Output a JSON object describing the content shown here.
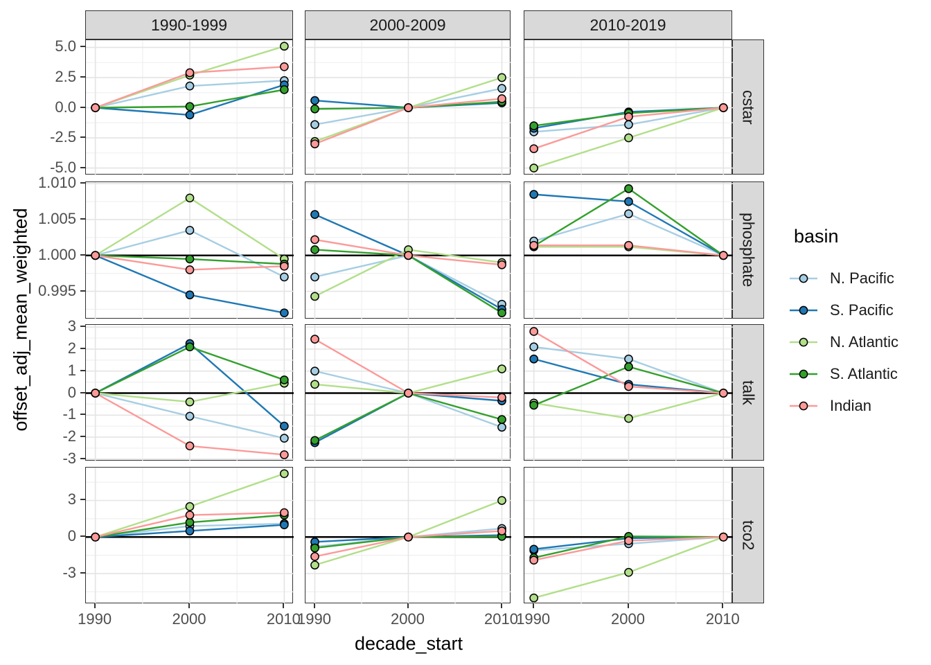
{
  "chart_data": {
    "type": "line",
    "title": "",
    "x_label": "decade_start",
    "y_label": "offset_adj_mean_weighted",
    "facet_columns": [
      "1990-1999",
      "2000-2009",
      "2010-2019"
    ],
    "facet_rows": [
      "cstar",
      "phosphate",
      "talk",
      "tco2"
    ],
    "x": [
      1990,
      2000,
      2010
    ],
    "x_domain": [
      1989,
      2011
    ],
    "x_tick_labels": [
      "1990",
      "2000",
      "2010"
    ],
    "x_minor": [
      1995,
      2005
    ],
    "grid": "on",
    "legend": {
      "title": "basin",
      "position": "right",
      "entries": [
        {
          "label": "N. Pacific",
          "color": "#a6cee3"
        },
        {
          "label": "S. Pacific",
          "color": "#1f78b4"
        },
        {
          "label": "N. Atlantic",
          "color": "#b2df8a"
        },
        {
          "label": "S. Atlantic",
          "color": "#33a02c"
        },
        {
          "label": "Indian",
          "color": "#fb9a99"
        }
      ]
    },
    "series_order": [
      "N. Pacific",
      "S. Pacific",
      "N. Atlantic",
      "S. Atlantic",
      "Indian"
    ],
    "colors": {
      "N. Pacific": "#a6cee3",
      "S. Pacific": "#1f78b4",
      "N. Atlantic": "#b2df8a",
      "S. Atlantic": "#33a02c",
      "Indian": "#fb9a99"
    },
    "rows": [
      {
        "name": "cstar",
        "domain": [
          -5.6,
          5.6
        ],
        "ticks": [
          {
            "v": 5.0,
            "label": "5.0"
          },
          {
            "v": 2.5,
            "label": "2.5"
          },
          {
            "v": 0.0,
            "label": "0.0"
          },
          {
            "v": -2.5,
            "label": "-2.5"
          },
          {
            "v": -5.0,
            "label": "-5.0"
          }
        ],
        "minor": [
          3.75,
          1.25,
          -1.25,
          -3.75
        ],
        "refline": null,
        "panels": [
          {
            "N. Pacific": [
              0,
              1.8,
              2.25
            ],
            "S. Pacific": [
              0,
              -0.6,
              1.9
            ],
            "N. Atlantic": [
              0,
              2.7,
              5.1
            ],
            "S. Atlantic": [
              0,
              0.1,
              1.5
            ],
            "Indian": [
              0,
              2.9,
              3.4
            ]
          },
          {
            "N. Pacific": [
              -1.4,
              0,
              1.6
            ],
            "S. Pacific": [
              0.6,
              0,
              0.4
            ],
            "N. Atlantic": [
              -2.8,
              0,
              2.5
            ],
            "S. Atlantic": [
              -0.1,
              0,
              0.5
            ],
            "Indian": [
              -3.0,
              0,
              0.75
            ]
          },
          {
            "N. Pacific": [
              -2.0,
              -1.4,
              0
            ],
            "S. Pacific": [
              -1.7,
              -0.35,
              0
            ],
            "N. Atlantic": [
              -5.0,
              -2.5,
              0
            ],
            "S. Atlantic": [
              -1.5,
              -0.45,
              0
            ],
            "Indian": [
              -3.4,
              -0.75,
              0
            ]
          }
        ]
      },
      {
        "name": "phosphate",
        "domain": [
          0.9911,
          1.0102
        ],
        "ticks": [
          {
            "v": 1.01,
            "label": "1.010"
          },
          {
            "v": 1.005,
            "label": "1.005"
          },
          {
            "v": 1.0,
            "label": "1.000"
          },
          {
            "v": 0.995,
            "label": "0.995"
          }
        ],
        "minor": [
          1.0075,
          1.0025,
          0.9975,
          0.9925
        ],
        "refline": 1.0,
        "panels": [
          {
            "N. Pacific": [
              1.0,
              1.0035,
              0.997
            ],
            "S. Pacific": [
              1.0,
              0.9945,
              0.992
            ],
            "N. Atlantic": [
              1.0,
              1.008,
              0.9995
            ],
            "S. Atlantic": [
              1.0,
              0.9995,
              0.9988
            ],
            "Indian": [
              1.0,
              0.998,
              0.9985
            ]
          },
          {
            "N. Pacific": [
              0.997,
              1.0,
              0.9932
            ],
            "S. Pacific": [
              1.0057,
              1.0,
              0.9925
            ],
            "N. Atlantic": [
              0.9943,
              1.0008,
              0.999
            ],
            "S. Atlantic": [
              1.0008,
              1.0,
              0.992
            ],
            "Indian": [
              1.0022,
              1.0,
              0.9987
            ]
          },
          {
            "N. Pacific": [
              1.002,
              1.0058,
              1.0
            ],
            "S. Pacific": [
              1.0085,
              1.0075,
              1.0
            ],
            "N. Atlantic": [
              1.0012,
              1.0012,
              1.0
            ],
            "S. Atlantic": [
              1.0013,
              1.0093,
              1.0
            ],
            "Indian": [
              1.0014,
              1.0014,
              1.0
            ]
          }
        ]
      },
      {
        "name": "talk",
        "domain": [
          -3.1,
          3.1
        ],
        "ticks": [
          {
            "v": 3,
            "label": "3"
          },
          {
            "v": 2,
            "label": "2"
          },
          {
            "v": 1,
            "label": "1"
          },
          {
            "v": 0,
            "label": "0"
          },
          {
            "v": -1,
            "label": "-1"
          },
          {
            "v": -2,
            "label": "-2"
          },
          {
            "v": -3,
            "label": "-3"
          }
        ],
        "minor": [
          2.5,
          1.5,
          0.5,
          -0.5,
          -1.5,
          -2.5
        ],
        "refline": 0,
        "panels": [
          {
            "N. Pacific": [
              0,
              -1.05,
              -2.05
            ],
            "S. Pacific": [
              0,
              2.25,
              -1.5
            ],
            "N. Atlantic": [
              0,
              -0.4,
              0.45
            ],
            "S. Atlantic": [
              0,
              2.1,
              0.6
            ],
            "Indian": [
              0,
              -2.4,
              -2.8
            ]
          },
          {
            "N. Pacific": [
              1.0,
              0,
              -1.55
            ],
            "S. Pacific": [
              -2.25,
              0,
              -0.35
            ],
            "N. Atlantic": [
              0.4,
              0,
              1.1
            ],
            "S. Atlantic": [
              -2.15,
              0,
              -1.2
            ],
            "Indian": [
              2.45,
              0,
              -0.2
            ]
          },
          {
            "N. Pacific": [
              2.1,
              1.55,
              0
            ],
            "S. Pacific": [
              1.55,
              0.4,
              0
            ],
            "N. Atlantic": [
              -0.45,
              -1.15,
              0
            ],
            "S. Atlantic": [
              -0.55,
              1.2,
              0
            ],
            "Indian": [
              2.8,
              0.3,
              0
            ]
          }
        ]
      },
      {
        "name": "tco2",
        "domain": [
          -5.5,
          5.7
        ],
        "ticks": [
          {
            "v": 3,
            "label": "3"
          },
          {
            "v": 0,
            "label": "0"
          },
          {
            "v": -3,
            "label": "-3"
          }
        ],
        "minor": [
          4.5,
          1.5,
          -1.5,
          -4.5
        ],
        "refline": 0,
        "panels": [
          {
            "N. Pacific": [
              0,
              0.9,
              1.1
            ],
            "S. Pacific": [
              0,
              0.5,
              1.0
            ],
            "N. Atlantic": [
              0,
              2.5,
              5.2
            ],
            "S. Atlantic": [
              0,
              1.2,
              1.8
            ],
            "Indian": [
              0,
              1.8,
              2.0
            ]
          },
          {
            "N. Pacific": [
              -0.8,
              0,
              0.7
            ],
            "S. Pacific": [
              -0.4,
              0,
              0.15
            ],
            "N. Atlantic": [
              -2.3,
              0,
              3.0
            ],
            "S. Atlantic": [
              -0.9,
              0,
              0.05
            ],
            "Indian": [
              -1.6,
              0,
              0.5
            ]
          },
          {
            "N. Pacific": [
              -1.1,
              -0.55,
              0
            ],
            "S. Pacific": [
              -1.0,
              -0.1,
              0
            ],
            "N. Atlantic": [
              -5.0,
              -2.9,
              0
            ],
            "S. Atlantic": [
              -1.7,
              0.05,
              0
            ],
            "Indian": [
              -1.9,
              -0.3,
              0
            ]
          }
        ]
      }
    ]
  }
}
